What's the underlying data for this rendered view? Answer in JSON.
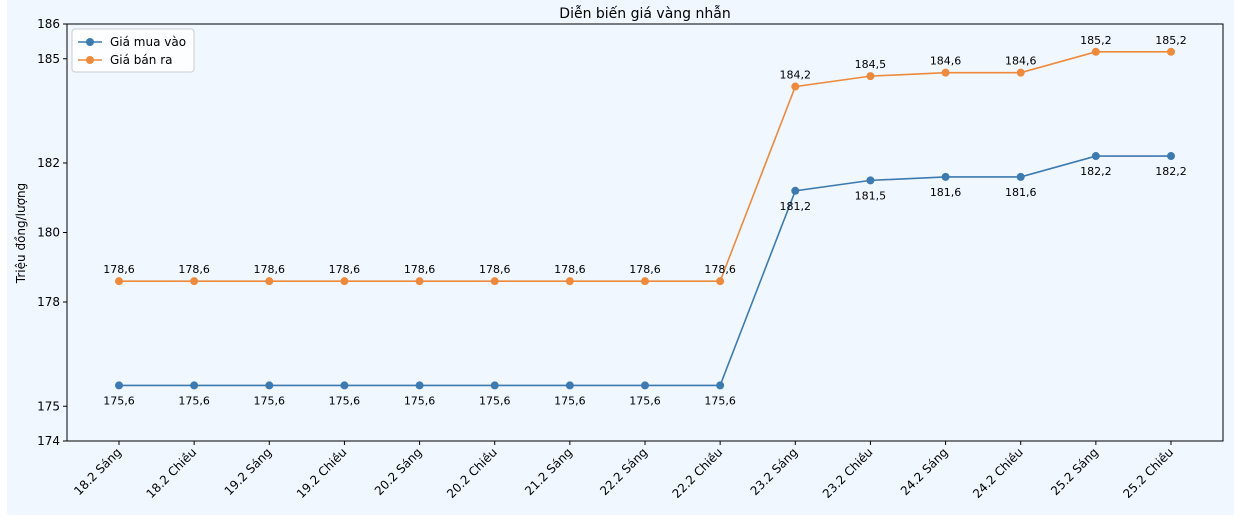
{
  "chart_data": {
    "type": "line",
    "title": "Diễn biến giá vàng nhẫn",
    "xlabel": "",
    "ylabel": "Triệu đồng/lượng",
    "ylim": [
      174,
      186
    ],
    "y_ticks": [
      174,
      175,
      178,
      180,
      182,
      185,
      186
    ],
    "grid": false,
    "legend_position": "top-left",
    "categories": [
      "18.2 Sáng",
      "18.2 Chiều",
      "19.2 Sáng",
      "19.2 Chiều",
      "20.2 Sáng",
      "20.2 Chiều",
      "21.2 Sáng",
      "22.2 Sáng",
      "22.2 Chiều",
      "23.2 Sáng",
      "23.2 Chiều",
      "24.2 Sáng",
      "24.2 Chiều",
      "25.2 Sáng",
      "25.2 Chiều"
    ],
    "series": [
      {
        "name": "Giá mua vào",
        "color": "#3d7ab0",
        "label_position": "below",
        "values": [
          175.6,
          175.6,
          175.6,
          175.6,
          175.6,
          175.6,
          175.6,
          175.6,
          175.6,
          181.2,
          181.5,
          181.6,
          181.6,
          182.2,
          182.2
        ],
        "labels": [
          "175,6",
          "175,6",
          "175,6",
          "175,6",
          "175,6",
          "175,6",
          "175,6",
          "175,6",
          "175,6",
          "181,2",
          "181,5",
          "181,6",
          "181,6",
          "182,2",
          "182,2"
        ]
      },
      {
        "name": "Giá bán ra",
        "color": "#ed8a3c",
        "label_position": "above",
        "values": [
          178.6,
          178.6,
          178.6,
          178.6,
          178.6,
          178.6,
          178.6,
          178.6,
          178.6,
          184.2,
          184.5,
          184.6,
          184.6,
          185.2,
          185.2
        ],
        "labels": [
          "178,6",
          "178,6",
          "178,6",
          "178,6",
          "178,6",
          "178,6",
          "178,6",
          "178,6",
          "178,6",
          "184,2",
          "184,5",
          "184,6",
          "184,6",
          "185,2",
          "185,2"
        ]
      }
    ]
  }
}
